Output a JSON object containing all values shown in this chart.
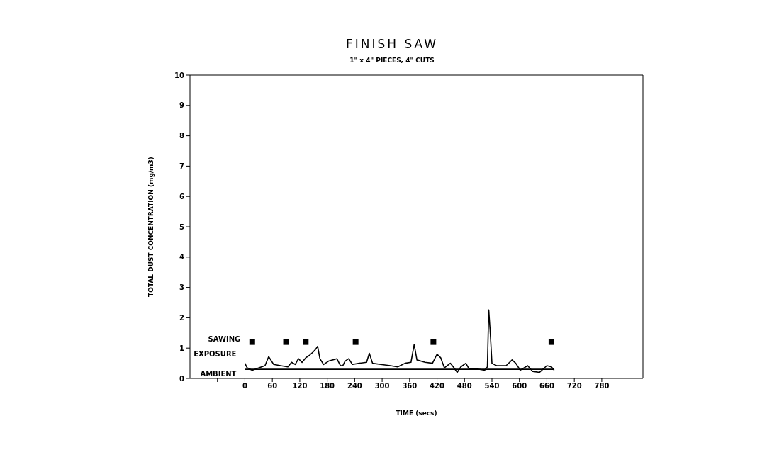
{
  "chart_data": {
    "type": "line",
    "title": "FINISH SAW",
    "subtitle": "1\" x 4\" PIECES, 4\" CUTS",
    "xlabel": "TIME (secs)",
    "ylabel": "TOTAL DUST CONCENTRATION (mg/m3)",
    "xlim": [
      -120,
      870
    ],
    "xticks": [
      {
        "value": -60,
        "label": null
      },
      0,
      60,
      120,
      180,
      240,
      300,
      360,
      420,
      480,
      540,
      600,
      660,
      720,
      780
    ],
    "ylim": [
      0,
      10
    ],
    "yticks": [
      0,
      1,
      2,
      3,
      4,
      5,
      6,
      7,
      8,
      9,
      10
    ],
    "grid": false,
    "legend": "left",
    "series": [
      {
        "name": "SAWING",
        "type": "scatter",
        "marker": "square",
        "color": "#000000",
        "x": [
          16,
          90,
          133,
          242,
          412,
          670
        ],
        "values": [
          1.2,
          1.2,
          1.2,
          1.2,
          1.2,
          1.2
        ]
      },
      {
        "name": "EXPOSURE",
        "color": "#000000",
        "x": [
          0,
          5,
          16,
          31,
          44,
          52,
          57,
          63,
          78,
          94,
          102,
          110,
          117,
          125,
          133,
          141,
          149,
          154,
          159,
          164,
          172,
          183,
          201,
          209,
          214,
          219,
          227,
          235,
          250,
          266,
          272,
          279,
          297,
          318,
          334,
          350,
          363,
          370,
          376,
          394,
          410,
          420,
          428,
          436,
          449,
          457,
          464,
          472,
          483,
          490,
          509,
          524,
          530,
          533,
          536,
          540,
          550,
          571,
          584,
          592,
          602,
          618,
          629,
          644,
          660,
          670,
          676
        ],
        "values": [
          0.5,
          0.35,
          0.27,
          0.35,
          0.42,
          0.72,
          0.6,
          0.46,
          0.42,
          0.38,
          0.53,
          0.46,
          0.65,
          0.53,
          0.68,
          0.76,
          0.87,
          0.95,
          1.06,
          0.65,
          0.46,
          0.57,
          0.65,
          0.42,
          0.42,
          0.57,
          0.65,
          0.46,
          0.5,
          0.53,
          0.83,
          0.5,
          0.46,
          0.42,
          0.38,
          0.5,
          0.53,
          1.12,
          0.61,
          0.53,
          0.5,
          0.8,
          0.68,
          0.35,
          0.5,
          0.35,
          0.2,
          0.38,
          0.5,
          0.31,
          0.31,
          0.27,
          0.38,
          2.26,
          1.59,
          0.5,
          0.42,
          0.42,
          0.61,
          0.5,
          0.27,
          0.42,
          0.23,
          0.2,
          0.42,
          0.38,
          0.27
        ]
      },
      {
        "name": "AMBIENT",
        "color": "#000000",
        "x": [
          0,
          676
        ],
        "values": [
          0.3,
          0.3
        ]
      }
    ]
  }
}
